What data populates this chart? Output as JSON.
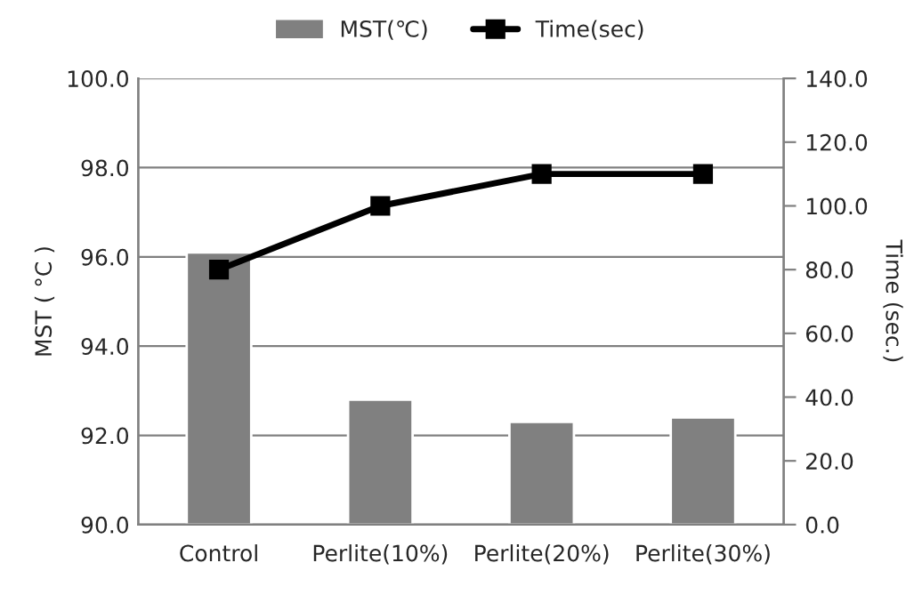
{
  "chart_data": {
    "type": "bar",
    "categories": [
      "Control",
      "Perlite(10%)",
      "Perlite(20%)",
      "Perlite(30%)"
    ],
    "series": [
      {
        "name": "MST(℃)",
        "color": "#808080",
        "values": [
          96.1,
          92.8,
          92.3,
          92.4
        ]
      },
      {
        "name": "Time(sec)",
        "type": "line",
        "axis": "y2",
        "color": "#000000",
        "values": [
          80,
          100,
          110,
          110
        ]
      }
    ],
    "ylabel": "MST ( °C )",
    "y2label": "Time (sec.)",
    "ylim": [
      90,
      100
    ],
    "yticks": [
      {
        "value": 90,
        "label": "90.0"
      },
      {
        "value": 92,
        "label": "92.0"
      },
      {
        "value": 94,
        "label": "94.0"
      },
      {
        "value": 96,
        "label": "96.0"
      },
      {
        "value": 98,
        "label": "98.0"
      },
      {
        "value": 100,
        "label": "100.0"
      }
    ],
    "y2lim": [
      0,
      140
    ],
    "y2ticks": [
      {
        "value": 0,
        "label": "0.0"
      },
      {
        "value": 20,
        "label": "20.0"
      },
      {
        "value": 40,
        "label": "40.0"
      },
      {
        "value": 60,
        "label": "60.0"
      },
      {
        "value": 80,
        "label": "80.0"
      },
      {
        "value": 100,
        "label": "100.0"
      },
      {
        "value": 120,
        "label": "120.0"
      },
      {
        "value": 140,
        "label": "140.0"
      }
    ],
    "grid": "y",
    "legend": "top",
    "marker": "square",
    "line_style": "solid"
  }
}
